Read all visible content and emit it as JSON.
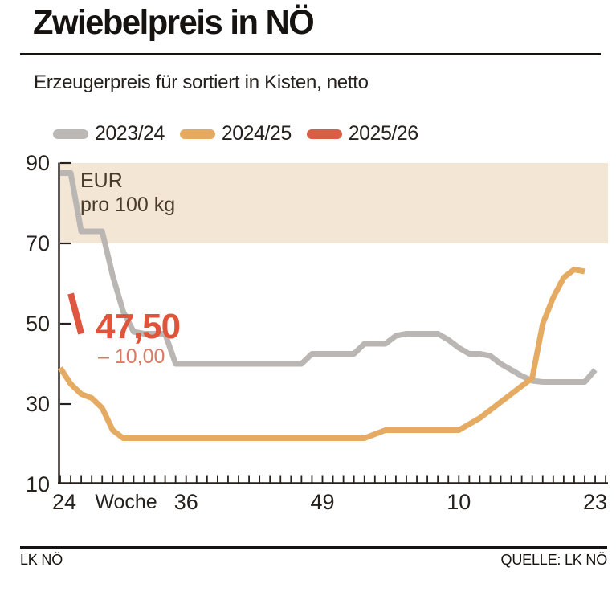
{
  "header": {
    "title": "Zwiebelpreis in NÖ",
    "subtitle": "Erzeugerpreis für sortiert in Kisten, netto"
  },
  "legend": {
    "items": [
      {
        "label": "2023/24",
        "color": "#bcb8b5"
      },
      {
        "label": "2024/25",
        "color": "#e5aa62"
      },
      {
        "label": "2025/26",
        "color": "#d85f45"
      }
    ]
  },
  "chart_data": {
    "type": "line",
    "title": "Zwiebelpreis in NÖ",
    "subtitle": "Erzeugerpreis für sortiert in Kisten, netto",
    "unit_line1": "EUR",
    "unit_line2": "pro 100 kg",
    "xlabel": "Woche",
    "ylim": [
      10,
      90
    ],
    "y_ticks": [
      90,
      70,
      50,
      30,
      10
    ],
    "highlight_band": {
      "from": 70,
      "to": 90,
      "color": "#f4e6d4"
    },
    "categories": [
      "24",
      "25",
      "26",
      "27",
      "28",
      "29",
      "30",
      "31",
      "32",
      "33",
      "34",
      "35",
      "36",
      "37",
      "38",
      "39",
      "40",
      "41",
      "42",
      "43",
      "44",
      "45",
      "46",
      "47",
      "48",
      "49",
      "50",
      "51",
      "52",
      "1",
      "2",
      "3",
      "4",
      "5",
      "6",
      "7",
      "8",
      "9",
      "10",
      "11",
      "12",
      "13",
      "14",
      "15",
      "16",
      "17",
      "18",
      "19",
      "20",
      "21",
      "22",
      "23"
    ],
    "x_tick_labels": [
      {
        "label": "24",
        "week_index": 0
      },
      {
        "label": "36",
        "week_index": 12
      },
      {
        "label": "49",
        "week_index": 25
      },
      {
        "label": "10",
        "week_index": 38
      },
      {
        "label": "23",
        "week_index": 51
      }
    ],
    "series": [
      {
        "name": "2023/24",
        "color": "#b9b6b3",
        "start_week_index": 0,
        "values": [
          87.5,
          87.5,
          73,
          73,
          73,
          62,
          53,
          48,
          47.5,
          47.5,
          47.5,
          40,
          40,
          40,
          40,
          40,
          40,
          40,
          40,
          40,
          40,
          40,
          40,
          40,
          42.5,
          42.5,
          42.5,
          42.5,
          42.5,
          45,
          45,
          45,
          47,
          47.5,
          47.5,
          47.5,
          47.5,
          46,
          44,
          42.5,
          42.5,
          42,
          40,
          38.5,
          37,
          35.8,
          35.5,
          35.5,
          35.5,
          35.5,
          35.5,
          38.5
        ]
      },
      {
        "name": "2024/25",
        "color": "#e6ab62",
        "start_week_index": 0,
        "values": [
          39,
          35,
          32.5,
          31.5,
          29,
          23.5,
          21.5,
          21.5,
          21.5,
          21.5,
          21.5,
          21.5,
          21.5,
          21.5,
          21.5,
          21.5,
          21.5,
          21.5,
          21.5,
          21.5,
          21.5,
          21.5,
          21.5,
          21.5,
          21.5,
          21.5,
          21.5,
          21.5,
          21.5,
          21.5,
          22.5,
          23.5,
          23.5,
          23.5,
          23.5,
          23.5,
          23.5,
          23.5,
          23.5,
          25,
          26.5,
          28.5,
          30.5,
          32.5,
          34.5,
          36.5,
          50,
          56.5,
          61.5,
          63.5,
          63
        ]
      },
      {
        "name": "2025/26",
        "color": "#de5640",
        "start_week_index": 1,
        "values": [
          57.5,
          47.5
        ]
      }
    ],
    "annotation": {
      "value": "47,50",
      "change": "– 10,00",
      "value_color": "#e0553a",
      "change_color": "#da7a62"
    }
  },
  "footer": {
    "left": "LK NÖ",
    "right": "QUELLE: LK NÖ"
  },
  "colors": {
    "band": "#f4e6d4",
    "axis": "#26211d",
    "unit_text": "#493a29"
  }
}
